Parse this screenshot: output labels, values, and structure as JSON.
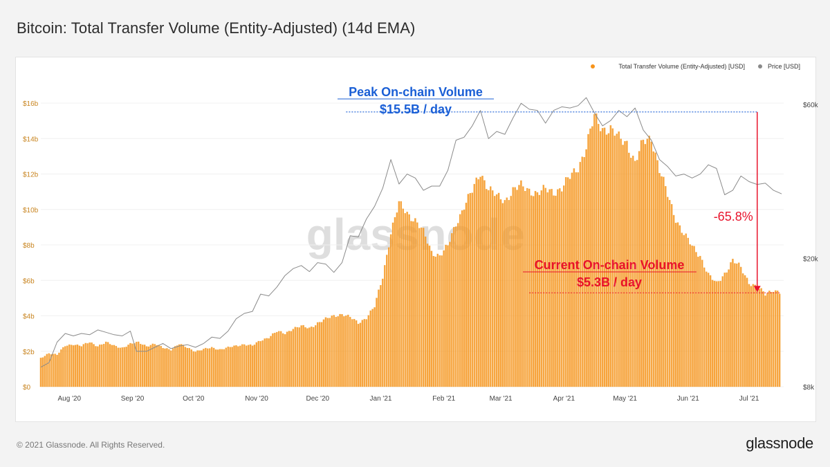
{
  "page": {
    "title": "Bitcoin: Total Transfer Volume (Entity-Adjusted) (14d EMA)",
    "footer": "© 2021 Glassnode. All Rights Reserved.",
    "brand": "glassnode",
    "watermark": "glassnode"
  },
  "colors": {
    "volume": "#f7931a",
    "volume_edge": "#f0a53a",
    "price": "#8a8a8a",
    "peak_annotation": "#1a5fd6",
    "current_annotation": "#e8132b",
    "left_axis_text": "#c8841f",
    "right_axis_text": "#444444"
  },
  "chart_data": {
    "type": "bar",
    "title": "Bitcoin: Total Transfer Volume (Entity-Adjusted) (14d EMA)",
    "legend": {
      "placement": "top-right",
      "entries": [
        {
          "name": "Total Transfer Volume (Entity-Adjusted) [USD]",
          "color": "#f7931a"
        },
        {
          "name": "Price [USD]",
          "color": "#8a8a8a"
        }
      ]
    },
    "x_range": [
      "2020-07-20",
      "2021-07-20"
    ],
    "x_ticks": [
      {
        "date": "2020-08-01",
        "label": "Aug '20"
      },
      {
        "date": "2020-09-01",
        "label": "Sep '20"
      },
      {
        "date": "2020-10-01",
        "label": "Oct '20"
      },
      {
        "date": "2020-11-01",
        "label": "Nov '20"
      },
      {
        "date": "2020-12-01",
        "label": "Dec '20"
      },
      {
        "date": "2021-01-01",
        "label": "Jan '21"
      },
      {
        "date": "2021-02-01",
        "label": "Feb '21"
      },
      {
        "date": "2021-03-01",
        "label": "Mar '21"
      },
      {
        "date": "2021-04-01",
        "label": "Apr '21"
      },
      {
        "date": "2021-05-01",
        "label": "May '21"
      },
      {
        "date": "2021-06-01",
        "label": "Jun '21"
      },
      {
        "date": "2021-07-01",
        "label": "Jul '21"
      }
    ],
    "left_axis": {
      "unit": "USD billions",
      "ylim": [
        0,
        16
      ],
      "ticks": [
        {
          "value": 0,
          "label": "$0"
        },
        {
          "value": 2,
          "label": "$2b"
        },
        {
          "value": 4,
          "label": "$4b"
        },
        {
          "value": 6,
          "label": "$6b"
        },
        {
          "value": 8,
          "label": "$8b"
        },
        {
          "value": 10,
          "label": "$10b"
        },
        {
          "value": 12,
          "label": "$12b"
        },
        {
          "value": 14,
          "label": "$14b"
        },
        {
          "value": 16,
          "label": "$16b"
        }
      ]
    },
    "right_axis": {
      "scale": "log",
      "unit": "USD",
      "ylim": [
        8000,
        60000
      ],
      "ticks": [
        {
          "value": 8000,
          "label": "$8k"
        },
        {
          "value": 20000,
          "label": "$20k"
        },
        {
          "value": 60000,
          "label": "$60k"
        }
      ]
    },
    "volume_series": {
      "name": "Total Transfer Volume (Entity-Adjusted) [USD]",
      "unit": "USD billions",
      "points": [
        [
          "2020-07-20",
          1.6
        ],
        [
          "2020-07-24",
          1.9
        ],
        [
          "2020-07-28",
          1.8
        ],
        [
          "2020-08-01",
          2.3
        ],
        [
          "2020-08-05",
          2.4
        ],
        [
          "2020-08-09",
          2.3
        ],
        [
          "2020-08-13",
          2.5
        ],
        [
          "2020-08-17",
          2.3
        ],
        [
          "2020-08-21",
          2.5
        ],
        [
          "2020-08-25",
          2.3
        ],
        [
          "2020-08-29",
          2.2
        ],
        [
          "2020-09-02",
          2.4
        ],
        [
          "2020-09-06",
          2.5
        ],
        [
          "2020-09-10",
          2.3
        ],
        [
          "2020-09-14",
          2.4
        ],
        [
          "2020-09-18",
          2.2
        ],
        [
          "2020-09-22",
          2.1
        ],
        [
          "2020-09-26",
          2.4
        ],
        [
          "2020-09-30",
          2.2
        ],
        [
          "2020-10-04",
          2.0
        ],
        [
          "2020-10-08",
          2.1
        ],
        [
          "2020-10-12",
          2.2
        ],
        [
          "2020-10-16",
          2.1
        ],
        [
          "2020-10-20",
          2.2
        ],
        [
          "2020-10-24",
          2.3
        ],
        [
          "2020-10-28",
          2.4
        ],
        [
          "2020-11-01",
          2.3
        ],
        [
          "2020-11-05",
          2.6
        ],
        [
          "2020-11-09",
          2.8
        ],
        [
          "2020-11-13",
          3.1
        ],
        [
          "2020-11-17",
          3.0
        ],
        [
          "2020-11-21",
          3.3
        ],
        [
          "2020-11-25",
          3.4
        ],
        [
          "2020-11-29",
          3.3
        ],
        [
          "2020-12-03",
          3.6
        ],
        [
          "2020-12-07",
          3.8
        ],
        [
          "2020-12-11",
          4.0
        ],
        [
          "2020-12-15",
          4.1
        ],
        [
          "2020-12-19",
          3.9
        ],
        [
          "2020-12-23",
          3.6
        ],
        [
          "2020-12-27",
          3.9
        ],
        [
          "2020-12-31",
          4.5
        ],
        [
          "2021-01-04",
          6.2
        ],
        [
          "2021-01-08",
          8.7
        ],
        [
          "2021-01-12",
          10.3
        ],
        [
          "2021-01-16",
          9.8
        ],
        [
          "2021-01-20",
          9.4
        ],
        [
          "2021-01-24",
          8.7
        ],
        [
          "2021-01-28",
          7.6
        ],
        [
          "2021-02-01",
          7.4
        ],
        [
          "2021-02-05",
          7.9
        ],
        [
          "2021-02-09",
          9.2
        ],
        [
          "2021-02-13",
          10.2
        ],
        [
          "2021-02-17",
          11.0
        ],
        [
          "2021-02-21",
          12.1
        ],
        [
          "2021-02-25",
          11.2
        ],
        [
          "2021-03-01",
          10.7
        ],
        [
          "2021-03-05",
          10.5
        ],
        [
          "2021-03-09",
          11.1
        ],
        [
          "2021-03-13",
          11.3
        ],
        [
          "2021-03-17",
          11.1
        ],
        [
          "2021-03-21",
          10.9
        ],
        [
          "2021-03-25",
          11.1
        ],
        [
          "2021-03-29",
          11.0
        ],
        [
          "2021-04-02",
          11.2
        ],
        [
          "2021-04-06",
          11.8
        ],
        [
          "2021-04-10",
          12.4
        ],
        [
          "2021-04-14",
          13.5
        ],
        [
          "2021-04-18",
          15.2
        ],
        [
          "2021-04-22",
          14.6
        ],
        [
          "2021-04-26",
          14.5
        ],
        [
          "2021-04-30",
          14.0
        ],
        [
          "2021-05-04",
          13.8
        ],
        [
          "2021-05-08",
          12.6
        ],
        [
          "2021-05-12",
          13.8
        ],
        [
          "2021-05-16",
          14.1
        ],
        [
          "2021-05-20",
          12.2
        ],
        [
          "2021-05-24",
          10.8
        ],
        [
          "2021-05-28",
          9.5
        ],
        [
          "2021-06-01",
          8.6
        ],
        [
          "2021-06-05",
          7.9
        ],
        [
          "2021-06-09",
          7.4
        ],
        [
          "2021-06-13",
          6.3
        ],
        [
          "2021-06-17",
          5.8
        ],
        [
          "2021-06-21",
          6.4
        ],
        [
          "2021-06-25",
          7.1
        ],
        [
          "2021-06-29",
          6.7
        ],
        [
          "2021-07-03",
          5.9
        ],
        [
          "2021-07-07",
          5.6
        ],
        [
          "2021-07-11",
          5.2
        ],
        [
          "2021-07-15",
          5.5
        ],
        [
          "2021-07-18",
          5.3
        ]
      ]
    },
    "price_series": {
      "name": "Price [USD]",
      "unit": "USD",
      "points": [
        [
          "2020-07-20",
          9200
        ],
        [
          "2020-07-24",
          9500
        ],
        [
          "2020-07-28",
          11000
        ],
        [
          "2020-08-01",
          11700
        ],
        [
          "2020-08-05",
          11500
        ],
        [
          "2020-08-09",
          11700
        ],
        [
          "2020-08-13",
          11600
        ],
        [
          "2020-08-17",
          12000
        ],
        [
          "2020-08-21",
          11800
        ],
        [
          "2020-08-25",
          11600
        ],
        [
          "2020-08-29",
          11500
        ],
        [
          "2020-09-02",
          11900
        ],
        [
          "2020-09-05",
          10300
        ],
        [
          "2020-09-10",
          10300
        ],
        [
          "2020-09-14",
          10600
        ],
        [
          "2020-09-18",
          10900
        ],
        [
          "2020-09-22",
          10500
        ],
        [
          "2020-09-26",
          10700
        ],
        [
          "2020-09-30",
          10800
        ],
        [
          "2020-10-04",
          10600
        ],
        [
          "2020-10-08",
          10900
        ],
        [
          "2020-10-12",
          11400
        ],
        [
          "2020-10-16",
          11300
        ],
        [
          "2020-10-20",
          11900
        ],
        [
          "2020-10-24",
          13000
        ],
        [
          "2020-10-28",
          13500
        ],
        [
          "2020-11-01",
          13700
        ],
        [
          "2020-11-05",
          15500
        ],
        [
          "2020-11-09",
          15300
        ],
        [
          "2020-11-13",
          16300
        ],
        [
          "2020-11-17",
          17700
        ],
        [
          "2020-11-21",
          18600
        ],
        [
          "2020-11-25",
          19000
        ],
        [
          "2020-11-29",
          18200
        ],
        [
          "2020-12-03",
          19400
        ],
        [
          "2020-12-07",
          19200
        ],
        [
          "2020-12-11",
          18100
        ],
        [
          "2020-12-15",
          19400
        ],
        [
          "2020-12-19",
          23500
        ],
        [
          "2020-12-23",
          23300
        ],
        [
          "2020-12-27",
          26500
        ],
        [
          "2020-12-31",
          29000
        ],
        [
          "2021-01-04",
          33000
        ],
        [
          "2021-01-08",
          40500
        ],
        [
          "2021-01-12",
          34000
        ],
        [
          "2021-01-16",
          36500
        ],
        [
          "2021-01-20",
          35500
        ],
        [
          "2021-01-24",
          32500
        ],
        [
          "2021-01-28",
          33500
        ],
        [
          "2021-02-01",
          33500
        ],
        [
          "2021-02-05",
          37500
        ],
        [
          "2021-02-09",
          46500
        ],
        [
          "2021-02-13",
          47500
        ],
        [
          "2021-02-17",
          51500
        ],
        [
          "2021-02-21",
          57500
        ],
        [
          "2021-02-25",
          47000
        ],
        [
          "2021-03-01",
          49500
        ],
        [
          "2021-03-05",
          48500
        ],
        [
          "2021-03-09",
          54500
        ],
        [
          "2021-03-13",
          60500
        ],
        [
          "2021-03-17",
          58000
        ],
        [
          "2021-03-21",
          57500
        ],
        [
          "2021-03-25",
          52500
        ],
        [
          "2021-03-29",
          57500
        ],
        [
          "2021-04-02",
          59000
        ],
        [
          "2021-04-06",
          58500
        ],
        [
          "2021-04-10",
          59500
        ],
        [
          "2021-04-14",
          63000
        ],
        [
          "2021-04-18",
          56500
        ],
        [
          "2021-04-22",
          51500
        ],
        [
          "2021-04-26",
          53500
        ],
        [
          "2021-04-30",
          57500
        ],
        [
          "2021-05-04",
          55000
        ],
        [
          "2021-05-08",
          58500
        ],
        [
          "2021-05-12",
          50000
        ],
        [
          "2021-05-16",
          46500
        ],
        [
          "2021-05-20",
          40500
        ],
        [
          "2021-05-24",
          38500
        ],
        [
          "2021-05-28",
          36000
        ],
        [
          "2021-06-01",
          36500
        ],
        [
          "2021-06-05",
          35500
        ],
        [
          "2021-06-09",
          36500
        ],
        [
          "2021-06-13",
          39000
        ],
        [
          "2021-06-17",
          38000
        ],
        [
          "2021-06-21",
          31500
        ],
        [
          "2021-06-25",
          32500
        ],
        [
          "2021-06-29",
          36000
        ],
        [
          "2021-07-03",
          34600
        ],
        [
          "2021-07-07",
          33900
        ],
        [
          "2021-07-11",
          34200
        ],
        [
          "2021-07-15",
          32500
        ],
        [
          "2021-07-19",
          31700
        ]
      ]
    },
    "annotations": {
      "peak": {
        "line1": "Peak On-chain Volume",
        "line2": "$15.5B / day",
        "value": 15.5,
        "from_date": "2020-12-17",
        "to_date": "2021-07-07"
      },
      "current": {
        "line1": "Current On-chain Volume",
        "line2": "$5.3B / day",
        "value": 5.3,
        "from_date": "2021-03-17",
        "to_date": "2021-07-18"
      },
      "change": {
        "label": "-65.8%",
        "date": "2021-07-07"
      }
    }
  }
}
